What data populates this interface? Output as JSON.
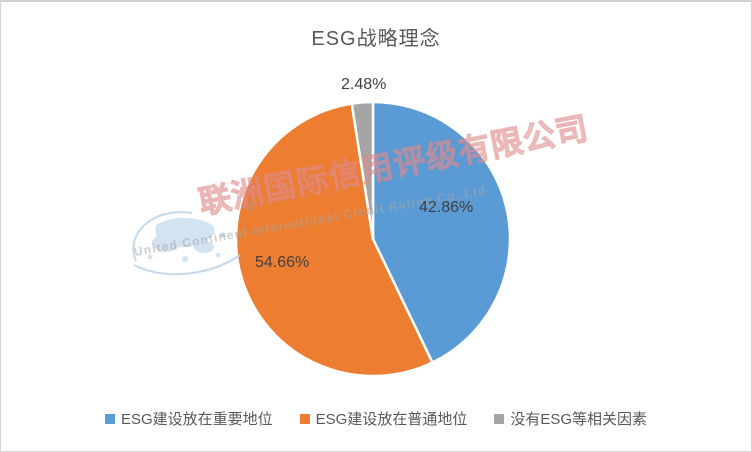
{
  "title": "ESG战略理念",
  "chart_data": {
    "type": "pie",
    "title": "ESG战略理念",
    "labels": [
      "ESG建设放在重要地位",
      "ESG建设放在普通地位",
      "没有ESG等相关因素"
    ],
    "values": [
      42.86,
      54.66,
      2.48
    ],
    "data_labels": [
      "42.86%",
      "54.66%",
      "2.48%"
    ],
    "colors": [
      "#5B9BD5",
      "#ED7D31",
      "#A5A5A5"
    ],
    "slice_border_color": "#FFFFFF",
    "start_angle": "12-oclock",
    "direction": "clockwise",
    "legend_position": "bottom",
    "title_color": "#595959",
    "label_color": "#404040"
  },
  "watermark": {
    "company_cn": "联洲国际信用评级有限公司",
    "company_en": "United Continent International Credit Rating Co.,Ltd",
    "registered_mark": "®"
  }
}
